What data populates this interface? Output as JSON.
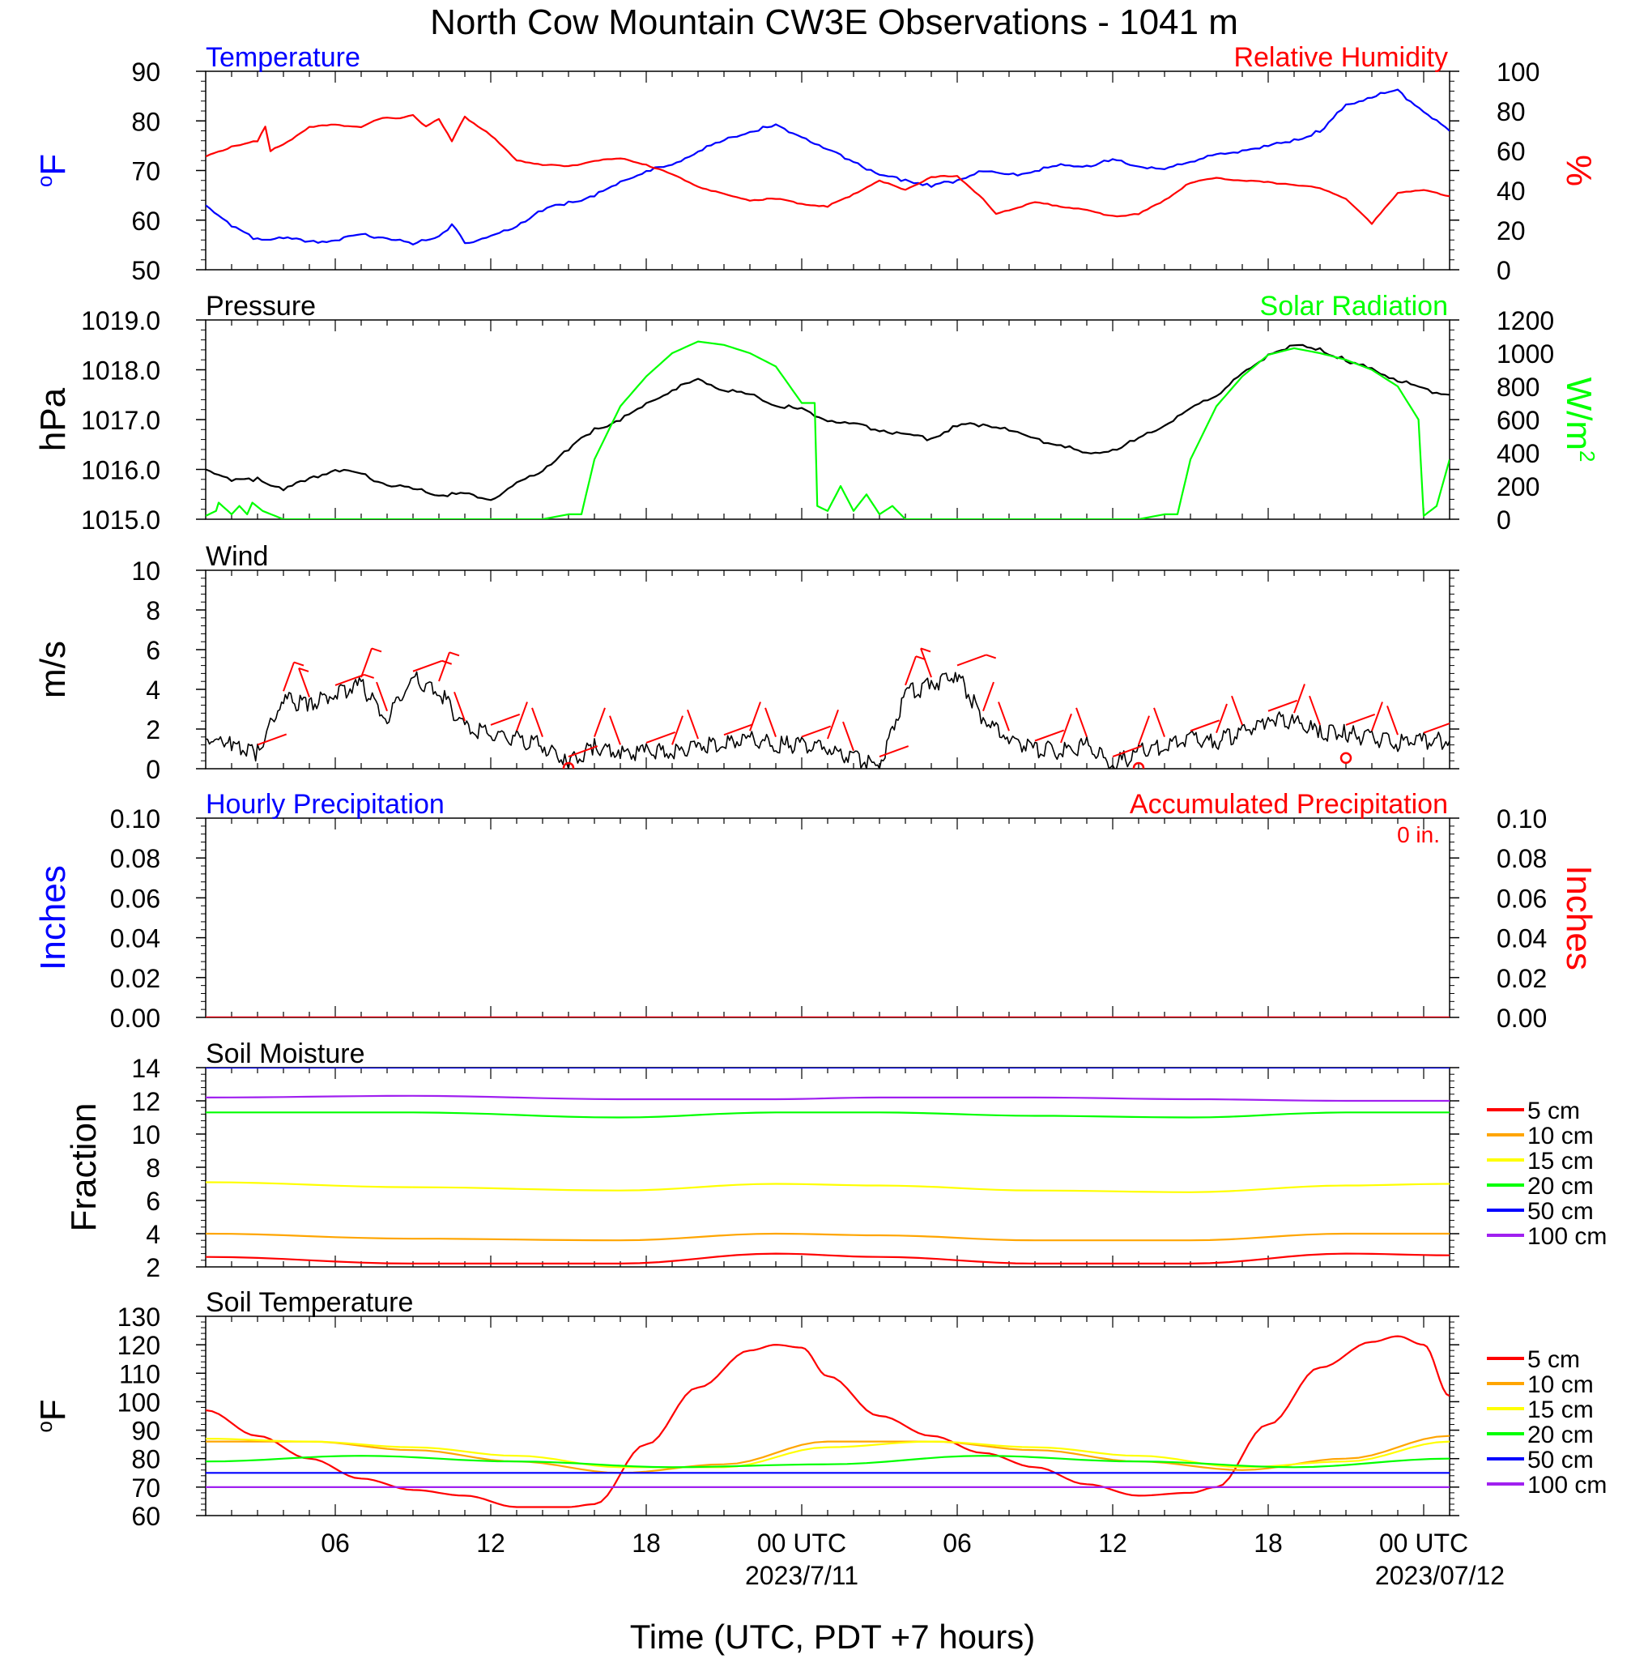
{
  "title": "North Cow Mountain CW3E Observations - 1041 m",
  "xaxis": {
    "label": "Time (UTC, PDT +7 hours)",
    "range_hours": [
      0,
      48
    ],
    "ticks": [
      {
        "hour": 5,
        "label": "06"
      },
      {
        "hour": 11,
        "label": "12"
      },
      {
        "hour": 17,
        "label": "18"
      },
      {
        "hour": 23,
        "label": "00 UTC",
        "date": "2023/7/11"
      },
      {
        "hour": 29,
        "label": "06"
      },
      {
        "hour": 35,
        "label": "12"
      },
      {
        "hour": 41,
        "label": "18"
      },
      {
        "hour": 47,
        "label": "00 UTC",
        "date": "2023/07/12"
      }
    ]
  },
  "colors": {
    "red": "#ff0000",
    "blue": "#0000ff",
    "green": "#00ff00",
    "black": "#000000",
    "orange": "#ffa500",
    "yellow": "#ffff00",
    "purple": "#a020f0"
  },
  "chart_data": [
    {
      "id": "temp_rh",
      "type": "line",
      "title_left": "Temperature",
      "title_right": "Relative Humidity",
      "ylabel_left": "oF",
      "ylabel_right": "%",
      "ylim_left": [
        50,
        90
      ],
      "ylim_right": [
        0,
        100
      ],
      "yticks_left": [
        "50",
        "60",
        "70",
        "80",
        "90"
      ],
      "yticks_right": [
        "0",
        "20",
        "40",
        "60",
        "80",
        "100"
      ],
      "series": [
        {
          "name": "Temperature",
          "axis": "left",
          "color": "#0000ff",
          "x": [
            0,
            1,
            2,
            3,
            4,
            5,
            6,
            7,
            8,
            9,
            9.5,
            10,
            11,
            12,
            13,
            14,
            15,
            16,
            17,
            18,
            19,
            20,
            21,
            22,
            23,
            24,
            25,
            26,
            27,
            28,
            29,
            30,
            31,
            32,
            33,
            34,
            35,
            36,
            37,
            38,
            39,
            40,
            41,
            42,
            43,
            44,
            45,
            46,
            47,
            48
          ],
          "y": [
            63,
            59,
            56,
            56.5,
            55.5,
            56,
            57,
            56.5,
            55,
            57,
            59,
            55.5,
            56.5,
            59,
            62,
            63.5,
            65,
            67.5,
            70,
            71,
            74,
            76,
            78,
            79,
            77,
            74,
            72,
            69,
            68,
            67,
            68,
            70,
            69,
            70,
            71,
            71,
            72,
            71,
            70,
            72,
            73,
            74,
            75,
            76,
            78,
            83,
            85,
            86,
            82,
            78
          ]
        },
        {
          "name": "Relative Humidity",
          "axis": "right",
          "color": "#ff0000",
          "x": [
            0,
            1,
            2,
            2.3,
            2.5,
            3,
            4,
            5,
            6,
            6.5,
            7,
            7.5,
            8,
            8.5,
            9,
            9.5,
            10,
            11,
            12,
            13,
            14,
            15,
            16,
            17,
            18,
            19,
            20,
            21,
            22,
            23,
            24,
            25,
            26,
            27,
            28,
            29,
            30,
            30.5,
            31,
            32,
            33,
            34,
            35,
            36,
            37,
            38,
            39,
            40,
            41,
            42,
            43,
            44,
            45,
            46,
            47,
            48
          ],
          "y": [
            57,
            62,
            65,
            72,
            60,
            63,
            72,
            73,
            72,
            75,
            77,
            76,
            78,
            72,
            76,
            65,
            77,
            68,
            55,
            53,
            52,
            55,
            56,
            53,
            48,
            42,
            38,
            35,
            36,
            33,
            32,
            38,
            45,
            40,
            47,
            47,
            36,
            28,
            30,
            34,
            32,
            30,
            27,
            28,
            35,
            44,
            46,
            45,
            44,
            43,
            41,
            36,
            23,
            39,
            40,
            37
          ]
        }
      ]
    },
    {
      "id": "pressure_solar",
      "type": "line",
      "title_left": "Pressure",
      "title_right": "Solar Radiation",
      "ylabel_left": "hPa",
      "ylabel_right": "W/m2",
      "ylim_left": [
        1015.0,
        1019.0
      ],
      "ylim_right": [
        0,
        1200
      ],
      "yticks_left": [
        "1015.0",
        "1016.0",
        "1017.0",
        "1018.0",
        "1019.0"
      ],
      "yticks_right": [
        "0",
        "200",
        "400",
        "600",
        "800",
        "1000",
        "1200"
      ],
      "series": [
        {
          "name": "Pressure",
          "axis": "left",
          "color": "#000000",
          "x": [
            0,
            1,
            2,
            3,
            4,
            5,
            6,
            7,
            8,
            9,
            10,
            11,
            12,
            13,
            14,
            15,
            16,
            17,
            18,
            19,
            20,
            21,
            22,
            23,
            24,
            25,
            26,
            27,
            28,
            29,
            30,
            31,
            32,
            33,
            34,
            35,
            36,
            37,
            38,
            39,
            40,
            41,
            42,
            43,
            44,
            45,
            46,
            47,
            48
          ],
          "y": [
            1016.0,
            1015.8,
            1015.8,
            1015.6,
            1015.8,
            1016.0,
            1015.9,
            1015.7,
            1015.6,
            1015.5,
            1015.5,
            1015.4,
            1015.7,
            1016.0,
            1016.4,
            1016.8,
            1017.0,
            1017.3,
            1017.6,
            1017.8,
            1017.6,
            1017.5,
            1017.3,
            1017.2,
            1017.0,
            1016.9,
            1016.8,
            1016.7,
            1016.6,
            1016.9,
            1016.9,
            1016.8,
            1016.6,
            1016.5,
            1016.3,
            1016.4,
            1016.6,
            1016.9,
            1017.2,
            1017.5,
            1017.9,
            1018.3,
            1018.5,
            1018.4,
            1018.2,
            1018.0,
            1017.8,
            1017.6,
            1017.5
          ]
        },
        {
          "name": "Solar Radiation",
          "axis": "right",
          "color": "#00ff00",
          "x": [
            0,
            0.4,
            0.5,
            1,
            1.3,
            1.6,
            1.8,
            2.2,
            3,
            4,
            5,
            6,
            7,
            8,
            9,
            10,
            11,
            12,
            13,
            14,
            14.5,
            15,
            16,
            17,
            18,
            19,
            20,
            21,
            22,
            23,
            23.5,
            23.6,
            24,
            24.5,
            25,
            25.5,
            26,
            26.5,
            27,
            27.5,
            28,
            29,
            30,
            31,
            32,
            33,
            34,
            35,
            36,
            37,
            37.5,
            38,
            39,
            40,
            41,
            42,
            43,
            44,
            45,
            46,
            46.8,
            47,
            47.5,
            48
          ],
          "y": [
            20,
            50,
            100,
            30,
            80,
            30,
            100,
            50,
            0,
            0,
            0,
            0,
            0,
            0,
            0,
            0,
            0,
            0,
            0,
            30,
            30,
            360,
            680,
            860,
            1000,
            1070,
            1050,
            1000,
            920,
            700,
            700,
            80,
            50,
            200,
            50,
            150,
            30,
            80,
            0,
            0,
            0,
            0,
            0,
            0,
            0,
            0,
            0,
            0,
            0,
            30,
            30,
            360,
            680,
            860,
            990,
            1030,
            1000,
            960,
            900,
            800,
            600,
            20,
            80,
            360
          ]
        }
      ]
    },
    {
      "id": "wind",
      "type": "line",
      "title_left": "Wind",
      "ylabel_left": "m/s",
      "ylim_left": [
        0,
        10
      ],
      "yticks_left": [
        "0",
        "2",
        "4",
        "6",
        "8",
        "10"
      ],
      "series": [
        {
          "name": "Wind speed",
          "axis": "left",
          "color": "#000000",
          "x": [
            0,
            1,
            2,
            3,
            4,
            5,
            6,
            7,
            8,
            9,
            10,
            11,
            12,
            13,
            14,
            15,
            16,
            17,
            18,
            19,
            20,
            21,
            22,
            23,
            24,
            25,
            26,
            27,
            28,
            29,
            30,
            31,
            32,
            33,
            34,
            35,
            36,
            37,
            38,
            39,
            40,
            41,
            42,
            43,
            44,
            45,
            46,
            47,
            48
          ],
          "y": [
            1.5,
            1.3,
            0.8,
            3.5,
            3.2,
            3.8,
            4.2,
            2.5,
            4.5,
            4.0,
            2.0,
            1.8,
            1.5,
            1.2,
            0.2,
            1.2,
            0.8,
            0.9,
            0.8,
            1.1,
            1.3,
            1.5,
            1.2,
            1.2,
            1.1,
            0.5,
            0.2,
            3.8,
            4.2,
            4.8,
            2.5,
            1.5,
            1.0,
            0.9,
            1.2,
            0.2,
            0.8,
            1.2,
            1.5,
            1.4,
            1.8,
            2.5,
            2.4,
            1.8,
            1.8,
            1.5,
            1.3,
            1.4,
            1.4
          ]
        },
        {
          "name": "Calm",
          "color": "#ff0000",
          "x": [
            14,
            36,
            44
          ],
          "y": [
            0,
            0,
            0.5
          ]
        }
      ]
    },
    {
      "id": "precip",
      "type": "line",
      "title_left": "Hourly Precipitation",
      "title_right": "Accumulated Precipitation",
      "annotation": "0 in.",
      "ylabel_left": "Inches",
      "ylabel_right": "Inches",
      "ylim_left": [
        0,
        0.1
      ],
      "ylim_right": [
        0,
        0.1
      ],
      "yticks_left": [
        "0.00",
        "0.02",
        "0.04",
        "0.06",
        "0.08",
        "0.10"
      ],
      "yticks_right": [
        "0.00",
        "0.02",
        "0.04",
        "0.06",
        "0.08",
        "0.10"
      ],
      "series": [
        {
          "name": "Hourly Precipitation",
          "axis": "left",
          "color": "#0000ff",
          "x": [
            0,
            48
          ],
          "y": [
            0,
            0
          ]
        },
        {
          "name": "Accumulated Precipitation",
          "axis": "right",
          "color": "#ff0000",
          "x": [
            0,
            48
          ],
          "y": [
            0,
            0
          ]
        }
      ]
    },
    {
      "id": "soil_moisture",
      "type": "line",
      "title_left": "Soil Moisture",
      "ylabel_left": "Fraction",
      "ylim_left": [
        2,
        14
      ],
      "yticks_left": [
        "2",
        "4",
        "6",
        "8",
        "10",
        "12",
        "14"
      ],
      "legend": "right",
      "series": [
        {
          "name": "5 cm",
          "color": "#ff0000",
          "x": [
            0,
            8,
            16,
            22,
            26,
            32,
            38,
            44,
            48
          ],
          "y": [
            2.6,
            2.2,
            2.2,
            2.8,
            2.6,
            2.2,
            2.2,
            2.8,
            2.7
          ]
        },
        {
          "name": "10 cm",
          "color": "#ffa500",
          "x": [
            0,
            8,
            16,
            22,
            26,
            32,
            38,
            44,
            48
          ],
          "y": [
            4.0,
            3.7,
            3.6,
            4.0,
            3.9,
            3.6,
            3.6,
            4.0,
            4.0
          ]
        },
        {
          "name": "15 cm",
          "color": "#ffff00",
          "x": [
            0,
            8,
            16,
            22,
            26,
            32,
            38,
            44,
            48
          ],
          "y": [
            7.1,
            6.8,
            6.6,
            7.0,
            6.9,
            6.6,
            6.5,
            6.9,
            7.0
          ]
        },
        {
          "name": "20 cm",
          "color": "#00ff00",
          "x": [
            0,
            8,
            16,
            22,
            26,
            32,
            38,
            44,
            48
          ],
          "y": [
            11.3,
            11.3,
            11.0,
            11.3,
            11.3,
            11.1,
            11.0,
            11.3,
            11.3
          ]
        },
        {
          "name": "50 cm",
          "color": "#0000ff",
          "x": [
            0,
            48
          ],
          "y": [
            14.0,
            14.0
          ]
        },
        {
          "name": "100 cm",
          "color": "#a020f0",
          "x": [
            0,
            8,
            16,
            22,
            26,
            32,
            38,
            44,
            48
          ],
          "y": [
            12.2,
            12.3,
            12.1,
            12.1,
            12.2,
            12.2,
            12.1,
            12.0,
            12.0
          ]
        }
      ]
    },
    {
      "id": "soil_temperature",
      "type": "line",
      "title_left": "Soil Temperature",
      "ylabel_left": "oF",
      "ylim_left": [
        60,
        130
      ],
      "yticks_left": [
        "60",
        "70",
        "80",
        "90",
        "100",
        "110",
        "120",
        "130"
      ],
      "legend": "right",
      "series": [
        {
          "name": "5 cm",
          "color": "#ff0000",
          "x": [
            0,
            2,
            4,
            6,
            8,
            10,
            12,
            14,
            15,
            17,
            19,
            21,
            22,
            23,
            24,
            26,
            28,
            30,
            32,
            34,
            36,
            38,
            39,
            41,
            43,
            45,
            46,
            47,
            48
          ],
          "y": [
            97,
            88,
            80,
            73,
            69,
            67,
            63,
            63,
            64,
            85,
            105,
            118,
            120,
            119,
            109,
            95,
            88,
            82,
            77,
            71,
            67,
            68,
            70,
            92,
            112,
            121,
            123,
            120,
            102
          ]
        },
        {
          "name": "10 cm",
          "color": "#ffa500",
          "x": [
            0,
            4,
            8,
            12,
            16,
            20,
            24,
            28,
            32,
            36,
            40,
            44,
            48
          ],
          "y": [
            86,
            86,
            83,
            79,
            75,
            78,
            86,
            86,
            83,
            79,
            76,
            80,
            88
          ]
        },
        {
          "name": "15 cm",
          "color": "#ffff00",
          "x": [
            0,
            4,
            8,
            12,
            16,
            20,
            24,
            28,
            32,
            36,
            40,
            44,
            48
          ],
          "y": [
            87,
            86,
            84,
            81,
            77,
            77,
            84,
            86,
            84,
            81,
            77,
            79,
            86
          ]
        },
        {
          "name": "20 cm",
          "color": "#00ff00",
          "x": [
            0,
            6,
            12,
            18,
            24,
            30,
            36,
            42,
            48
          ],
          "y": [
            79,
            81,
            79,
            77,
            78,
            81,
            79,
            77,
            80
          ]
        },
        {
          "name": "50 cm",
          "color": "#0000ff",
          "x": [
            0,
            48
          ],
          "y": [
            75,
            75
          ]
        },
        {
          "name": "100 cm",
          "color": "#a020f0",
          "x": [
            0,
            48
          ],
          "y": [
            70,
            70
          ]
        }
      ]
    }
  ]
}
